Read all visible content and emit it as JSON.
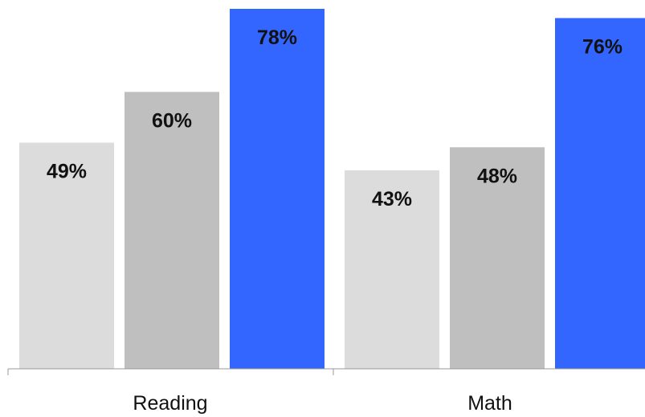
{
  "chart_data": {
    "type": "bar",
    "categories": [
      "Reading",
      "Math"
    ],
    "series": [
      {
        "values": [
          49,
          43
        ],
        "labels": [
          "49%",
          "43%"
        ],
        "color": "#dcdcdc"
      },
      {
        "values": [
          60,
          48
        ],
        "labels": [
          "60%",
          "48%"
        ],
        "color": "#bfbfbf"
      },
      {
        "values": [
          78,
          76
        ],
        "labels": [
          "78%",
          "76%"
        ],
        "color": "#3366ff"
      }
    ],
    "title": "",
    "xlabel": "",
    "ylabel": "",
    "ylim": [
      0,
      78
    ],
    "grid": false,
    "legend": "none"
  }
}
